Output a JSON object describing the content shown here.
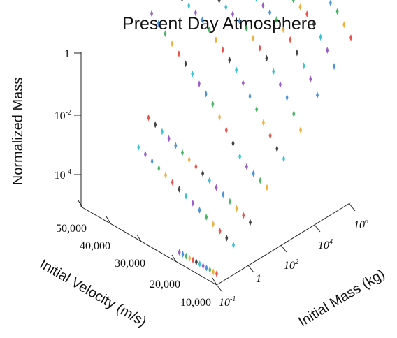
{
  "chart_data": {
    "type": "scatter",
    "title": "Present Day Atmosphere",
    "axes": {
      "x": {
        "label": "Initial Velocity (m/s)",
        "ticks": [
          "10,000",
          "20,000",
          "30,000",
          "40,000",
          "50,000"
        ],
        "range": [
          10000,
          50000
        ]
      },
      "y": {
        "label": "Initial Mass (kg)",
        "ticks": [
          {
            "base": "10",
            "exp": "-1"
          },
          {
            "base": "1",
            "exp": ""
          },
          {
            "base": "10",
            "exp": "2"
          },
          {
            "base": "10",
            "exp": "4"
          },
          {
            "base": "10",
            "exp": "6"
          }
        ],
        "scale": "log",
        "range": [
          -1,
          7
        ]
      },
      "z": {
        "label": "Normalized Mass",
        "ticks": [
          {
            "base": "10",
            "exp": "-4"
          },
          {
            "base": "10",
            "exp": "-2"
          },
          {
            "base": "1",
            "exp": ""
          }
        ],
        "scale": "log",
        "range": [
          -5,
          0
        ]
      }
    },
    "grid": false,
    "series": [
      {
        "initial_mass_log10": -1,
        "points": [
          [
            10000,
            -6.0
          ],
          [
            11000,
            -6.0
          ],
          [
            12000,
            -6.0
          ],
          [
            13000,
            -6.0
          ],
          [
            14000,
            -6.0
          ],
          [
            15000,
            -6.0
          ],
          [
            16000,
            -6.0
          ],
          [
            17000,
            -6.0
          ],
          [
            18000,
            -6.0
          ],
          [
            19000,
            -6.0
          ],
          [
            20000,
            -6.0
          ],
          [
            21000,
            -6.0
          ]
        ]
      },
      {
        "initial_mass_log10": 0,
        "points": [
          [
            10000,
            -5.4
          ],
          [
            12000,
            -5.3
          ],
          [
            14000,
            -5.2
          ],
          [
            16000,
            -5.1
          ],
          [
            18000,
            -5.0
          ],
          [
            20000,
            -4.9
          ],
          [
            22000,
            -4.8
          ],
          [
            24000,
            -4.7
          ],
          [
            26000,
            -4.6
          ],
          [
            28000,
            -4.5
          ],
          [
            30000,
            -4.4
          ],
          [
            32000,
            -4.3
          ],
          [
            34000,
            -4.2
          ],
          [
            36000,
            -4.1
          ],
          [
            38000,
            -4.0
          ]
        ]
      },
      {
        "initial_mass_log10": 1,
        "points": [
          [
            10000,
            -5.0
          ],
          [
            12000,
            -4.9
          ],
          [
            14000,
            -4.8
          ],
          [
            16000,
            -4.7
          ],
          [
            18000,
            -4.6
          ],
          [
            20000,
            -4.5
          ],
          [
            22000,
            -4.4
          ],
          [
            24000,
            -4.3
          ],
          [
            26000,
            -4.2
          ],
          [
            28000,
            -4.1
          ],
          [
            30000,
            -4.0
          ],
          [
            32000,
            -3.9
          ],
          [
            34000,
            -3.8
          ],
          [
            36000,
            -3.7
          ],
          [
            38000,
            -3.6
          ],
          [
            40000,
            -3.5
          ]
        ]
      },
      {
        "initial_mass_log10": 2,
        "points": [
          [
            10000,
            -4.2
          ],
          [
            12000,
            -4.1
          ],
          [
            14000,
            -4.0
          ],
          [
            16000,
            -3.9
          ],
          [
            18000,
            -3.7
          ],
          [
            20000,
            -3.4
          ],
          [
            22000,
            -3.1
          ],
          [
            24000,
            -2.8
          ],
          [
            26000,
            -2.5
          ],
          [
            28000,
            -2.3
          ],
          [
            30000,
            -2.1
          ],
          [
            32000,
            -1.9
          ],
          [
            34000,
            -1.7
          ],
          [
            36000,
            -1.5
          ],
          [
            38000,
            -1.3
          ],
          [
            40000,
            -1.1
          ],
          [
            42000,
            -0.9
          ],
          [
            44000,
            -0.7
          ]
        ]
      },
      {
        "initial_mass_log10": 3,
        "points": [
          [
            10000,
            -3.6
          ],
          [
            12000,
            -3.4
          ],
          [
            14000,
            -3.1
          ],
          [
            16000,
            -2.8
          ],
          [
            18000,
            -2.5
          ],
          [
            20000,
            -2.2
          ],
          [
            22000,
            -1.9
          ],
          [
            24000,
            -1.6
          ],
          [
            26000,
            -1.4
          ],
          [
            28000,
            -1.2
          ],
          [
            30000,
            -1.0
          ],
          [
            32000,
            -0.8
          ],
          [
            34000,
            -0.6
          ],
          [
            36000,
            -0.5
          ],
          [
            38000,
            -0.4
          ],
          [
            40000,
            -0.3
          ],
          [
            42000,
            -0.2
          ]
        ]
      },
      {
        "initial_mass_log10": 4,
        "points": [
          [
            10000,
            -3.0
          ],
          [
            12000,
            -2.6
          ],
          [
            14000,
            -2.2
          ],
          [
            16000,
            -1.9
          ],
          [
            18000,
            -1.6
          ],
          [
            20000,
            -1.3
          ],
          [
            22000,
            -1.1
          ],
          [
            24000,
            -0.9
          ],
          [
            26000,
            -0.7
          ],
          [
            28000,
            -0.6
          ],
          [
            30000,
            -0.5
          ],
          [
            32000,
            -0.4
          ],
          [
            34000,
            -0.3
          ],
          [
            36000,
            -0.2
          ],
          [
            38000,
            -0.15
          ],
          [
            40000,
            -0.1
          ]
        ]
      },
      {
        "initial_mass_log10": 5,
        "points": [
          [
            10000,
            -2.2
          ],
          [
            12000,
            -1.8
          ],
          [
            14000,
            -1.5
          ],
          [
            16000,
            -1.2
          ],
          [
            18000,
            -0.9
          ],
          [
            20000,
            -0.7
          ],
          [
            22000,
            -0.5
          ],
          [
            24000,
            -0.4
          ],
          [
            26000,
            -0.3
          ],
          [
            28000,
            -0.2
          ],
          [
            30000,
            -0.15
          ],
          [
            32000,
            -0.1
          ],
          [
            34000,
            -0.05
          ],
          [
            36000,
            -0.02
          ]
        ]
      },
      {
        "initial_mass_log10": 6,
        "points": [
          [
            10000,
            -1.6
          ],
          [
            12000,
            -1.2
          ],
          [
            14000,
            -0.9
          ],
          [
            16000,
            -0.6
          ],
          [
            18000,
            -0.4
          ],
          [
            20000,
            -0.3
          ],
          [
            22000,
            -0.2
          ],
          [
            24000,
            -0.1
          ],
          [
            26000,
            -0.05
          ],
          [
            28000,
            -0.02
          ],
          [
            30000,
            0.0
          ]
        ]
      },
      {
        "initial_mass_log10": 7,
        "points": [
          [
            10000,
            -1.0
          ],
          [
            12000,
            -0.7
          ],
          [
            14000,
            -0.4
          ],
          [
            16000,
            -0.25
          ],
          [
            18000,
            -0.15
          ],
          [
            20000,
            -0.08
          ],
          [
            22000,
            -0.04
          ],
          [
            24000,
            -0.02
          ],
          [
            26000,
            0.0
          ]
        ]
      }
    ],
    "point_colors": [
      "#e8342c",
      "#f0a21c",
      "#2aa84a",
      "#2a7fd4",
      "#8b3fc2",
      "#18b8c8",
      "#222222"
    ]
  }
}
